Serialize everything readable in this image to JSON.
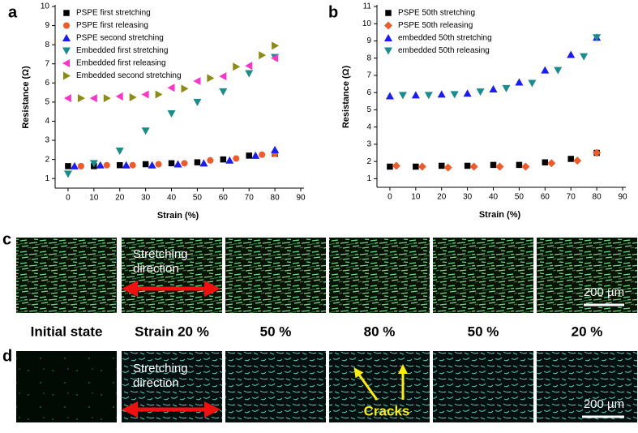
{
  "chart_data": [
    {
      "type": "scatter",
      "panel": "a",
      "xlabel": "Strain (%)",
      "ylabel": "Resistance (Ω)",
      "xlim": [
        -5,
        90
      ],
      "ylim": [
        0.5,
        10
      ],
      "xticks": [
        0,
        10,
        20,
        30,
        40,
        50,
        60,
        70,
        80,
        90
      ],
      "yticks": [
        1,
        2,
        3,
        4,
        5,
        6,
        7,
        8,
        9,
        10
      ],
      "series": [
        {
          "name": "PSPE first stretching",
          "color": "#000000",
          "marker": "square",
          "x": [
            0,
            10,
            20,
            30,
            40,
            50,
            60,
            70,
            80
          ],
          "values": [
            1.65,
            1.65,
            1.7,
            1.75,
            1.8,
            1.85,
            2.0,
            2.2,
            2.3
          ]
        },
        {
          "name": "PSPE first releasing",
          "color": "#f05a28",
          "marker": "circle",
          "x": [
            5,
            15,
            25,
            35,
            45,
            55,
            65,
            75,
            80
          ],
          "values": [
            1.65,
            1.7,
            1.7,
            1.75,
            1.8,
            1.95,
            2.05,
            2.25,
            2.3
          ]
        },
        {
          "name": "PSPE second stretching",
          "color": "#1a1aff",
          "marker": "triangle-up",
          "x": [
            2.5,
            12.5,
            22.5,
            32.5,
            42.5,
            52.5,
            62.5,
            72.5,
            80
          ],
          "values": [
            1.65,
            1.7,
            1.7,
            1.7,
            1.75,
            1.8,
            1.95,
            2.2,
            2.5
          ]
        },
        {
          "name": "Embedded first stretching",
          "color": "#1a8c8c",
          "marker": "triangle-down",
          "x": [
            0,
            10,
            20,
            30,
            40,
            50,
            60,
            70,
            80
          ],
          "values": [
            1.25,
            1.8,
            2.45,
            3.5,
            4.4,
            5.0,
            5.55,
            6.5,
            7.35
          ]
        },
        {
          "name": "Embedded first releasing",
          "color": "#ff33cc",
          "marker": "triangle-left",
          "x": [
            0,
            10,
            20,
            30,
            40,
            50,
            60,
            70,
            80
          ],
          "values": [
            5.2,
            5.2,
            5.3,
            5.4,
            5.75,
            6.1,
            6.35,
            6.9,
            7.3
          ]
        },
        {
          "name": "Embedded second stretching",
          "color": "#8c8c14",
          "marker": "triangle-right",
          "x": [
            5,
            15,
            25,
            35,
            45,
            55,
            65,
            75,
            80
          ],
          "values": [
            5.2,
            5.2,
            5.25,
            5.4,
            5.7,
            6.25,
            6.85,
            7.45,
            7.95
          ]
        }
      ]
    },
    {
      "type": "scatter",
      "panel": "b",
      "xlabel": "Strain (%)",
      "ylabel": "Resistance (Ω)",
      "xlim": [
        -5,
        90
      ],
      "ylim": [
        0.5,
        11
      ],
      "xticks": [
        0,
        10,
        20,
        30,
        40,
        50,
        60,
        70,
        80,
        90
      ],
      "yticks": [
        1,
        2,
        3,
        4,
        5,
        6,
        7,
        8,
        9,
        10,
        11
      ],
      "series": [
        {
          "name": "PSPE 50th stretching",
          "color": "#000000",
          "marker": "square",
          "x": [
            0,
            10,
            20,
            30,
            40,
            50,
            60,
            70,
            80
          ],
          "values": [
            1.7,
            1.7,
            1.75,
            1.75,
            1.8,
            1.8,
            1.95,
            2.15,
            2.5
          ]
        },
        {
          "name": "PSPE 50th releasing",
          "color": "#f05a28",
          "marker": "diamond",
          "x": [
            2.5,
            12.5,
            22.5,
            32.5,
            42.5,
            52.5,
            62.5,
            72.5,
            80
          ],
          "values": [
            1.75,
            1.7,
            1.65,
            1.7,
            1.7,
            1.7,
            1.9,
            2.05,
            2.5
          ]
        },
        {
          "name": "embedded 50th stretching",
          "color": "#1a1aff",
          "marker": "triangle-up",
          "x": [
            0,
            10,
            20,
            30,
            40,
            50,
            60,
            70,
            80
          ],
          "values": [
            5.8,
            5.85,
            5.9,
            5.95,
            6.2,
            6.6,
            7.3,
            8.2,
            9.2
          ]
        },
        {
          "name": "embedded 50th releasing",
          "color": "#1a8c8c",
          "marker": "triangle-down",
          "x": [
            5,
            15,
            25,
            35,
            45,
            55,
            65,
            75,
            80
          ],
          "values": [
            5.85,
            5.85,
            5.9,
            6.05,
            6.25,
            6.55,
            7.3,
            8.1,
            9.2
          ]
        }
      ]
    }
  ],
  "images": {
    "panels": [
      "c",
      "d"
    ],
    "states": [
      "Initial state",
      "Strain 20 %",
      "50 %",
      "80 %",
      "50 %",
      "20 %"
    ],
    "direction": "Stretching direction",
    "scale": "200 µm",
    "cracks": "Cracks"
  }
}
